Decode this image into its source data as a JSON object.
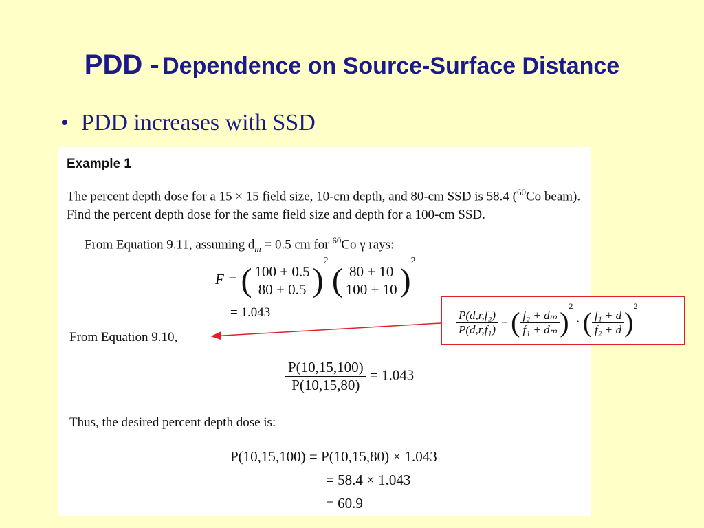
{
  "slide": {
    "title_prefix": "PDD -",
    "title_main": "Dependence on Source-Surface Distance",
    "bullet_symbol": "•",
    "bullet_text": "PDD increases with SSD",
    "colors": {
      "background": "#ffffc7",
      "title": "#1a1a8c",
      "box_border": "#e0202a",
      "arrow": "#e0202a"
    }
  },
  "example": {
    "heading": "Example 1",
    "problem_a": "The percent depth dose for a 15 × 15 field size, 10-cm depth, and 80-cm SSD is 58.4 (",
    "problem_sup": "60",
    "problem_b": "Co beam). Find the percent depth dose for the same field size and depth for a 100-cm SSD.",
    "assume_a": "From Equation 9.11, assuming d",
    "assume_sub": "m",
    "assume_b": " = 0.5 cm for ",
    "assume_sup": "60",
    "assume_c": "Co γ rays:",
    "f_lhs": "F =",
    "f_num1": "100 + 0.5",
    "f_den1": "80 + 0.5",
    "f_num2": "80 + 10",
    "f_den2": "100 + 10",
    "exp": "2",
    "f_result": "= 1.043",
    "from_eq": "From Equation 9.10,",
    "ratio_num": "P(10,15,100)",
    "ratio_den": "P(10,15,80)",
    "ratio_result": "= 1.043",
    "thus": "Thus, the desired percent depth dose is:",
    "final_line1": "P(10,15,100) = P(10,15,80) × 1.043",
    "final_line2": "= 58.4 × 1.043",
    "final_line3": "= 60.9"
  },
  "formula_box": {
    "lhs_num": "P(d,r,f₂)",
    "lhs_den": "P(d,r,f₁)",
    "eq": "=",
    "t1_num": "f₂ + dₘ",
    "t1_den": "f₁ + dₘ",
    "dot": "·",
    "t2_num": "f₁ + d",
    "t2_den": "f₂ + d",
    "exp": "2"
  }
}
